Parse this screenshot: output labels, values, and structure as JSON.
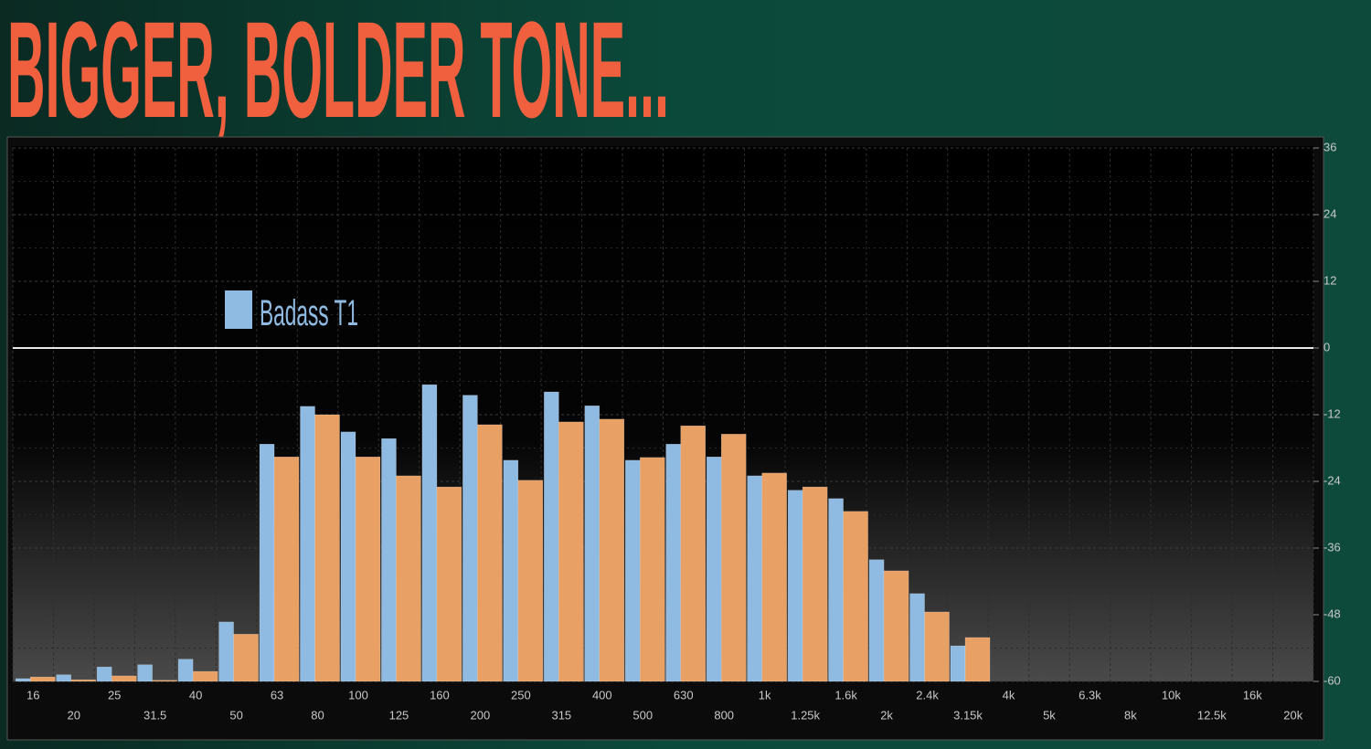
{
  "chart_data": {
    "type": "bar",
    "title": "BIGGER, BOLDER TONE...",
    "categories": [
      "16",
      "20",
      "25",
      "31.5",
      "40",
      "50",
      "63",
      "80",
      "100",
      "125",
      "160",
      "200",
      "250",
      "315",
      "400",
      "500",
      "630",
      "800",
      "1k",
      "1.25k",
      "1.6k",
      "2k",
      "2.4k",
      "3.15k",
      "4k",
      "5k",
      "6.3k",
      "8k",
      "10k",
      "12.5k",
      "16k",
      "20k"
    ],
    "series": [
      {
        "name": "Badass T1",
        "color": "#8fbbe3",
        "values": [
          -59.5,
          -58.8,
          -57.4,
          -57,
          -56,
          -49.3,
          -17.3,
          -10.5,
          -15.1,
          -16.3,
          -6.6,
          -8.5,
          -20.2,
          -7.9,
          -10.4,
          -20.2,
          -17.3,
          -19.6,
          -23,
          -25.6,
          -27.1,
          -38.1,
          -44.2,
          -53.6,
          null,
          null,
          null,
          null,
          null,
          null,
          null,
          null
        ]
      },
      {
        "color": "#e8a064",
        "values": [
          -59.2,
          -59.7,
          -59,
          -59.8,
          -58.2,
          -51.5,
          -19.6,
          -12,
          -19.6,
          -23,
          -25,
          -13.8,
          -23.8,
          -13.3,
          -12.8,
          -19.7,
          -14,
          -15.5,
          -22.5,
          -25,
          -29.4,
          -40.1,
          -47.5,
          -52.1,
          null,
          null,
          null,
          null,
          null,
          null,
          null,
          null
        ]
      }
    ],
    "ylim": [
      -60,
      36
    ],
    "yticks": [
      36,
      24,
      12,
      0,
      -12,
      -24,
      -36,
      -48,
      -60
    ],
    "grid": true
  }
}
